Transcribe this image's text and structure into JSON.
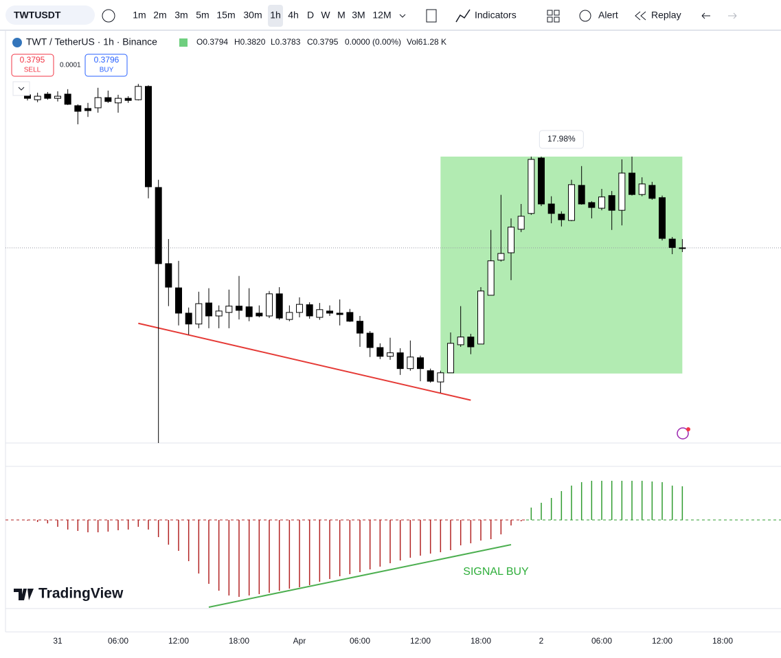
{
  "toolbar": {
    "symbol": "TWTUSDT",
    "intervals": [
      "1m",
      "2m",
      "3m",
      "5m",
      "15m",
      "30m",
      "1h",
      "4h",
      "D",
      "W",
      "M",
      "3M",
      "12M"
    ],
    "indicators": "Indicators",
    "alert": "Alert",
    "replay": "Replay"
  },
  "header": {
    "title": "TWT / TetherUS · 1h · Binance",
    "readout": [
      "O0.3794",
      "H0.3820",
      "L0.3783",
      "C0.3795",
      "0.0000 (0.00%)",
      "Vol61.28 K"
    ],
    "sell_price": "0.3795",
    "sell": "SELL",
    "spread": "0.0001",
    "buy_price": "0.3796",
    "buy": "BUY"
  },
  "watermark": "TradingView",
  "chart_data": [
    {
      "type": "candlestick",
      "categories": [
        null,
        null,
        null,
        "31",
        null,
        null,
        null,
        null,
        null,
        "06:00",
        null,
        null,
        null,
        null,
        null,
        "12:00",
        null,
        null,
        null,
        null,
        null,
        "18:00",
        null,
        null,
        null,
        null,
        null,
        "Apr",
        null,
        null,
        null,
        null,
        null,
        "06:00",
        null,
        null,
        null,
        null,
        null,
        "12:00",
        null,
        null,
        null,
        null,
        null,
        "18:00",
        null,
        null,
        null,
        null,
        null,
        "2",
        null,
        null,
        null,
        null,
        null,
        "06:00",
        null,
        null,
        null,
        null,
        null,
        "12:00",
        null,
        null,
        null,
        null,
        null,
        "18:00"
      ],
      "open": [
        0.4231,
        0.4217,
        0.4233,
        0.4221,
        0.4233,
        0.42,
        0.4192,
        0.4194,
        0.4223,
        0.4208,
        0.4221,
        0.4217,
        0.4255,
        0.3967,
        0.375,
        0.3681,
        0.3609,
        0.3578,
        0.3638,
        0.3601,
        0.3611,
        0.3629,
        0.3627,
        0.3609,
        0.3601,
        0.3664,
        0.3591,
        0.3611,
        0.3633,
        0.3597,
        0.3615,
        0.3609,
        0.3611,
        0.3586,
        0.3552,
        0.3511,
        0.3486,
        0.3496,
        0.3451,
        0.3482,
        0.3445,
        0.3413,
        0.3439,
        0.3519,
        0.3541,
        0.3521,
        0.366,
        0.376,
        0.3781,
        0.3848,
        0.3893,
        0.4051,
        0.392,
        0.3891,
        0.3873,
        0.3973,
        0.3924,
        0.3908,
        0.3944,
        0.3902,
        0.4008,
        0.3947,
        0.3973,
        0.3938,
        0.382,
        0.3794,
        null,
        null,
        null,
        null
      ],
      "high": [
        0.4241,
        0.4237,
        0.4239,
        0.4241,
        0.4247,
        0.4204,
        0.4208,
        0.4251,
        0.4243,
        0.4231,
        0.4227,
        0.4262,
        0.4258,
        0.3989,
        0.382,
        0.3758,
        0.3625,
        0.367,
        0.368,
        0.3631,
        0.3676,
        0.3715,
        0.368,
        0.3631,
        0.3672,
        0.3683,
        0.3631,
        0.3654,
        0.364,
        0.3638,
        0.3631,
        0.3648,
        0.3621,
        0.3601,
        0.3558,
        0.3523,
        0.3539,
        0.3509,
        0.3531,
        0.3488,
        0.3451,
        0.3445,
        0.3554,
        0.3629,
        0.355,
        0.3683,
        0.3846,
        0.3946,
        0.3879,
        0.392,
        0.4055,
        0.4055,
        0.3942,
        0.3899,
        0.3989,
        0.4028,
        0.3928,
        0.3963,
        0.3957,
        0.4047,
        0.4055,
        0.3996,
        0.3983,
        0.3944,
        0.3826,
        0.382,
        null,
        null,
        null,
        null
      ],
      "low": [
        0.4215,
        0.421,
        0.4217,
        0.4212,
        0.4202,
        0.4147,
        0.4168,
        0.418,
        0.4208,
        0.418,
        0.4208,
        0.4215,
        0.3936,
        0.3239,
        0.3629,
        0.3574,
        0.3548,
        0.3566,
        0.3566,
        0.3566,
        0.3566,
        0.3591,
        0.3586,
        0.3597,
        0.3595,
        0.359,
        0.3586,
        0.3597,
        0.3593,
        0.359,
        0.3601,
        0.3574,
        0.3584,
        0.3513,
        0.3484,
        0.3478,
        0.3476,
        0.3433,
        0.3445,
        0.3415,
        0.3411,
        0.3382,
        0.3439,
        0.3513,
        0.3492,
        0.3521,
        0.366,
        0.3756,
        0.3703,
        0.384,
        0.3889,
        0.3914,
        0.3865,
        0.3856,
        0.3871,
        0.3918,
        0.3879,
        0.3902,
        0.3846,
        0.3859,
        0.3944,
        0.3942,
        0.3932,
        0.3816,
        0.3777,
        0.3783,
        null,
        null,
        null,
        null
      ],
      "close": [
        0.4221,
        0.4227,
        0.4221,
        0.4227,
        0.4204,
        0.4184,
        0.4186,
        0.4223,
        0.4212,
        0.4221,
        0.4215,
        0.4255,
        0.3969,
        0.375,
        0.3683,
        0.3609,
        0.3578,
        0.3636,
        0.3601,
        0.3615,
        0.3629,
        0.3617,
        0.3599,
        0.3601,
        0.3664,
        0.3595,
        0.3611,
        0.3634,
        0.3601,
        0.3619,
        0.3609,
        0.3605,
        0.3586,
        0.3552,
        0.3511,
        0.3486,
        0.3496,
        0.3451,
        0.3484,
        0.3451,
        0.3415,
        0.3439,
        0.3523,
        0.3541,
        0.3513,
        0.3672,
        0.3758,
        0.3779,
        0.3854,
        0.3885,
        0.4047,
        0.392,
        0.3893,
        0.3875,
        0.3975,
        0.392,
        0.391,
        0.394,
        0.3902,
        0.4008,
        0.3947,
        0.3977,
        0.3936,
        0.3822,
        0.3796,
        0.3795,
        null,
        null,
        null,
        null
      ],
      "up_color": "#ffffff",
      "down_color": "#000000",
      "ylim": [
        0.3239,
        0.4415
      ],
      "measure": {
        "label": "17.98%",
        "low": 0.3437,
        "high": 0.4055,
        "start": 41,
        "end": 65,
        "color": "#b2ebb2"
      },
      "trendline": {
        "color": "#e53935",
        "from": [
          11,
          0.358
        ],
        "to": [
          44,
          0.3361
        ]
      }
    },
    {
      "type": "bar",
      "values": [
        -1,
        -3,
        -5,
        -10,
        -14,
        -16,
        -18,
        -18,
        -17,
        -15,
        -14,
        -10,
        -14,
        -25,
        -36,
        -45,
        -60,
        -78,
        -93,
        -103,
        -110,
        -112,
        -110,
        -108,
        -106,
        -103,
        -100,
        -98,
        -95,
        -90,
        -86,
        -82,
        -79,
        -76,
        -72,
        -68,
        -63,
        -59,
        -55,
        -52,
        -49,
        -47,
        -44,
        -37,
        -34,
        -30,
        -28,
        -21,
        -8,
        -2,
        18,
        25,
        32,
        42,
        50,
        55,
        57,
        57,
        57,
        57,
        57,
        57,
        56,
        55,
        50,
        49,
        null,
        null,
        null,
        null
      ],
      "positive_color": "#2e9b2e",
      "negative_color": "#b22222",
      "ylim": [
        -129,
        77
      ],
      "trendline": {
        "color": "#4caf50",
        "from": [
          18,
          -127
        ],
        "to": [
          48,
          -36
        ]
      },
      "annotation": "SIGNAL BUY"
    }
  ]
}
